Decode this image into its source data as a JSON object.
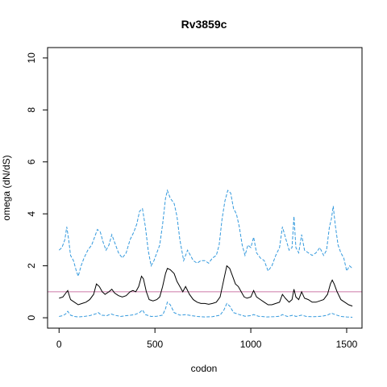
{
  "chart_data": {
    "type": "line",
    "title": "Rv3859c",
    "xlabel": "codon",
    "ylabel": "omega (dN/dS)",
    "xlim": [
      -60,
      1580
    ],
    "ylim": [
      -0.4,
      10.4
    ],
    "xticks": [
      0,
      500,
      1000,
      1500
    ],
    "yticks": [
      0,
      2,
      4,
      6,
      8,
      10
    ],
    "reference_line": {
      "y": 1,
      "color": "#cc79a7"
    },
    "colors": {
      "mean": "#000000",
      "ci": "#3399dd"
    },
    "series": [
      {
        "style": "dashed",
        "points": [
          [
            0,
            2.6
          ],
          [
            15,
            2.7
          ],
          [
            30,
            3.0
          ],
          [
            40,
            3.5
          ],
          [
            50,
            3.0
          ],
          [
            60,
            2.4
          ],
          [
            75,
            2.2
          ],
          [
            90,
            1.8
          ],
          [
            100,
            1.6
          ],
          [
            115,
            2.0
          ],
          [
            130,
            2.3
          ],
          [
            150,
            2.6
          ],
          [
            170,
            2.8
          ],
          [
            185,
            3.1
          ],
          [
            200,
            3.4
          ],
          [
            215,
            3.3
          ],
          [
            230,
            2.9
          ],
          [
            245,
            2.6
          ],
          [
            260,
            2.8
          ],
          [
            275,
            3.2
          ],
          [
            290,
            2.9
          ],
          [
            310,
            2.5
          ],
          [
            330,
            2.3
          ],
          [
            350,
            2.5
          ],
          [
            370,
            3.0
          ],
          [
            390,
            3.3
          ],
          [
            405,
            3.6
          ],
          [
            420,
            4.1
          ],
          [
            435,
            4.2
          ],
          [
            450,
            3.5
          ],
          [
            465,
            2.6
          ],
          [
            480,
            2.0
          ],
          [
            495,
            2.2
          ],
          [
            510,
            2.5
          ],
          [
            525,
            2.8
          ],
          [
            540,
            3.6
          ],
          [
            555,
            4.6
          ],
          [
            565,
            4.9
          ],
          [
            580,
            4.6
          ],
          [
            600,
            4.4
          ],
          [
            615,
            3.9
          ],
          [
            630,
            3.0
          ],
          [
            650,
            2.2
          ],
          [
            670,
            2.6
          ],
          [
            685,
            2.4
          ],
          [
            700,
            2.2
          ],
          [
            720,
            2.1
          ],
          [
            740,
            2.2
          ],
          [
            760,
            2.2
          ],
          [
            780,
            2.1
          ],
          [
            800,
            2.3
          ],
          [
            820,
            2.4
          ],
          [
            835,
            2.8
          ],
          [
            850,
            3.8
          ],
          [
            865,
            4.5
          ],
          [
            880,
            4.9
          ],
          [
            895,
            4.8
          ],
          [
            910,
            4.2
          ],
          [
            925,
            4.0
          ],
          [
            940,
            3.5
          ],
          [
            955,
            2.8
          ],
          [
            970,
            2.4
          ],
          [
            985,
            2.8
          ],
          [
            1000,
            2.7
          ],
          [
            1015,
            3.1
          ],
          [
            1030,
            2.5
          ],
          [
            1050,
            2.3
          ],
          [
            1070,
            2.2
          ],
          [
            1090,
            1.8
          ],
          [
            1110,
            2.0
          ],
          [
            1130,
            2.4
          ],
          [
            1150,
            2.7
          ],
          [
            1165,
            3.5
          ],
          [
            1180,
            3.1
          ],
          [
            1200,
            2.6
          ],
          [
            1215,
            2.7
          ],
          [
            1225,
            3.9
          ],
          [
            1235,
            2.7
          ],
          [
            1250,
            2.5
          ],
          [
            1265,
            3.2
          ],
          [
            1280,
            2.6
          ],
          [
            1300,
            2.5
          ],
          [
            1320,
            2.4
          ],
          [
            1340,
            2.5
          ],
          [
            1360,
            2.7
          ],
          [
            1380,
            2.4
          ],
          [
            1395,
            2.6
          ],
          [
            1410,
            3.5
          ],
          [
            1420,
            3.8
          ],
          [
            1430,
            4.3
          ],
          [
            1440,
            3.6
          ],
          [
            1455,
            2.8
          ],
          [
            1470,
            2.5
          ],
          [
            1485,
            2.3
          ],
          [
            1500,
            1.8
          ],
          [
            1515,
            2.0
          ],
          [
            1530,
            1.9
          ]
        ]
      },
      {
        "style": "solid",
        "points": [
          [
            0,
            0.75
          ],
          [
            20,
            0.8
          ],
          [
            35,
            0.95
          ],
          [
            45,
            1.05
          ],
          [
            60,
            0.7
          ],
          [
            80,
            0.6
          ],
          [
            100,
            0.5
          ],
          [
            120,
            0.55
          ],
          [
            140,
            0.6
          ],
          [
            160,
            0.7
          ],
          [
            180,
            0.9
          ],
          [
            195,
            1.3
          ],
          [
            210,
            1.2
          ],
          [
            225,
            1.0
          ],
          [
            240,
            0.9
          ],
          [
            260,
            1.0
          ],
          [
            275,
            1.1
          ],
          [
            290,
            0.95
          ],
          [
            310,
            0.85
          ],
          [
            330,
            0.8
          ],
          [
            350,
            0.85
          ],
          [
            370,
            1.0
          ],
          [
            385,
            1.05
          ],
          [
            400,
            1.0
          ],
          [
            415,
            1.2
          ],
          [
            430,
            1.6
          ],
          [
            440,
            1.5
          ],
          [
            455,
            1.0
          ],
          [
            470,
            0.7
          ],
          [
            490,
            0.65
          ],
          [
            510,
            0.7
          ],
          [
            525,
            0.8
          ],
          [
            540,
            1.2
          ],
          [
            555,
            1.7
          ],
          [
            565,
            1.9
          ],
          [
            580,
            1.85
          ],
          [
            600,
            1.7
          ],
          [
            615,
            1.4
          ],
          [
            630,
            1.2
          ],
          [
            645,
            1.0
          ],
          [
            660,
            1.2
          ],
          [
            680,
            0.9
          ],
          [
            700,
            0.7
          ],
          [
            720,
            0.6
          ],
          [
            740,
            0.55
          ],
          [
            760,
            0.55
          ],
          [
            780,
            0.52
          ],
          [
            800,
            0.55
          ],
          [
            820,
            0.6
          ],
          [
            840,
            0.8
          ],
          [
            860,
            1.5
          ],
          [
            875,
            2.0
          ],
          [
            890,
            1.9
          ],
          [
            905,
            1.6
          ],
          [
            920,
            1.3
          ],
          [
            935,
            1.2
          ],
          [
            950,
            1.0
          ],
          [
            965,
            0.8
          ],
          [
            980,
            0.75
          ],
          [
            1000,
            0.8
          ],
          [
            1015,
            1.05
          ],
          [
            1030,
            0.8
          ],
          [
            1050,
            0.7
          ],
          [
            1070,
            0.6
          ],
          [
            1090,
            0.5
          ],
          [
            1110,
            0.5
          ],
          [
            1130,
            0.55
          ],
          [
            1150,
            0.6
          ],
          [
            1165,
            0.9
          ],
          [
            1180,
            0.75
          ],
          [
            1200,
            0.6
          ],
          [
            1215,
            0.7
          ],
          [
            1225,
            1.1
          ],
          [
            1235,
            0.8
          ],
          [
            1250,
            0.7
          ],
          [
            1265,
            1.0
          ],
          [
            1280,
            0.75
          ],
          [
            1300,
            0.7
          ],
          [
            1320,
            0.6
          ],
          [
            1340,
            0.6
          ],
          [
            1360,
            0.65
          ],
          [
            1380,
            0.7
          ],
          [
            1400,
            0.9
          ],
          [
            1415,
            1.3
          ],
          [
            1425,
            1.45
          ],
          [
            1435,
            1.3
          ],
          [
            1450,
            1.0
          ],
          [
            1470,
            0.7
          ],
          [
            1490,
            0.6
          ],
          [
            1510,
            0.5
          ],
          [
            1530,
            0.45
          ]
        ]
      },
      {
        "style": "dashed",
        "points": [
          [
            0,
            0.05
          ],
          [
            20,
            0.08
          ],
          [
            35,
            0.15
          ],
          [
            45,
            0.25
          ],
          [
            60,
            0.1
          ],
          [
            80,
            0.05
          ],
          [
            100,
            0.03
          ],
          [
            130,
            0.05
          ],
          [
            160,
            0.08
          ],
          [
            190,
            0.15
          ],
          [
            205,
            0.2
          ],
          [
            220,
            0.1
          ],
          [
            250,
            0.08
          ],
          [
            270,
            0.15
          ],
          [
            290,
            0.1
          ],
          [
            320,
            0.05
          ],
          [
            350,
            0.08
          ],
          [
            375,
            0.1
          ],
          [
            395,
            0.12
          ],
          [
            420,
            0.2
          ],
          [
            435,
            0.3
          ],
          [
            450,
            0.12
          ],
          [
            480,
            0.05
          ],
          [
            510,
            0.06
          ],
          [
            540,
            0.1
          ],
          [
            555,
            0.35
          ],
          [
            565,
            0.6
          ],
          [
            580,
            0.5
          ],
          [
            600,
            0.2
          ],
          [
            630,
            0.1
          ],
          [
            660,
            0.12
          ],
          [
            690,
            0.08
          ],
          [
            720,
            0.05
          ],
          [
            760,
            0.03
          ],
          [
            800,
            0.04
          ],
          [
            840,
            0.1
          ],
          [
            860,
            0.3
          ],
          [
            875,
            0.55
          ],
          [
            890,
            0.45
          ],
          [
            910,
            0.2
          ],
          [
            940,
            0.12
          ],
          [
            970,
            0.06
          ],
          [
            1000,
            0.08
          ],
          [
            1015,
            0.12
          ],
          [
            1040,
            0.06
          ],
          [
            1080,
            0.03
          ],
          [
            1120,
            0.04
          ],
          [
            1150,
            0.06
          ],
          [
            1165,
            0.12
          ],
          [
            1190,
            0.05
          ],
          [
            1220,
            0.1
          ],
          [
            1235,
            0.05
          ],
          [
            1265,
            0.1
          ],
          [
            1290,
            0.05
          ],
          [
            1330,
            0.04
          ],
          [
            1370,
            0.06
          ],
          [
            1400,
            0.1
          ],
          [
            1420,
            0.18
          ],
          [
            1440,
            0.12
          ],
          [
            1470,
            0.05
          ],
          [
            1500,
            0.03
          ],
          [
            1530,
            0.02
          ]
        ]
      }
    ]
  }
}
